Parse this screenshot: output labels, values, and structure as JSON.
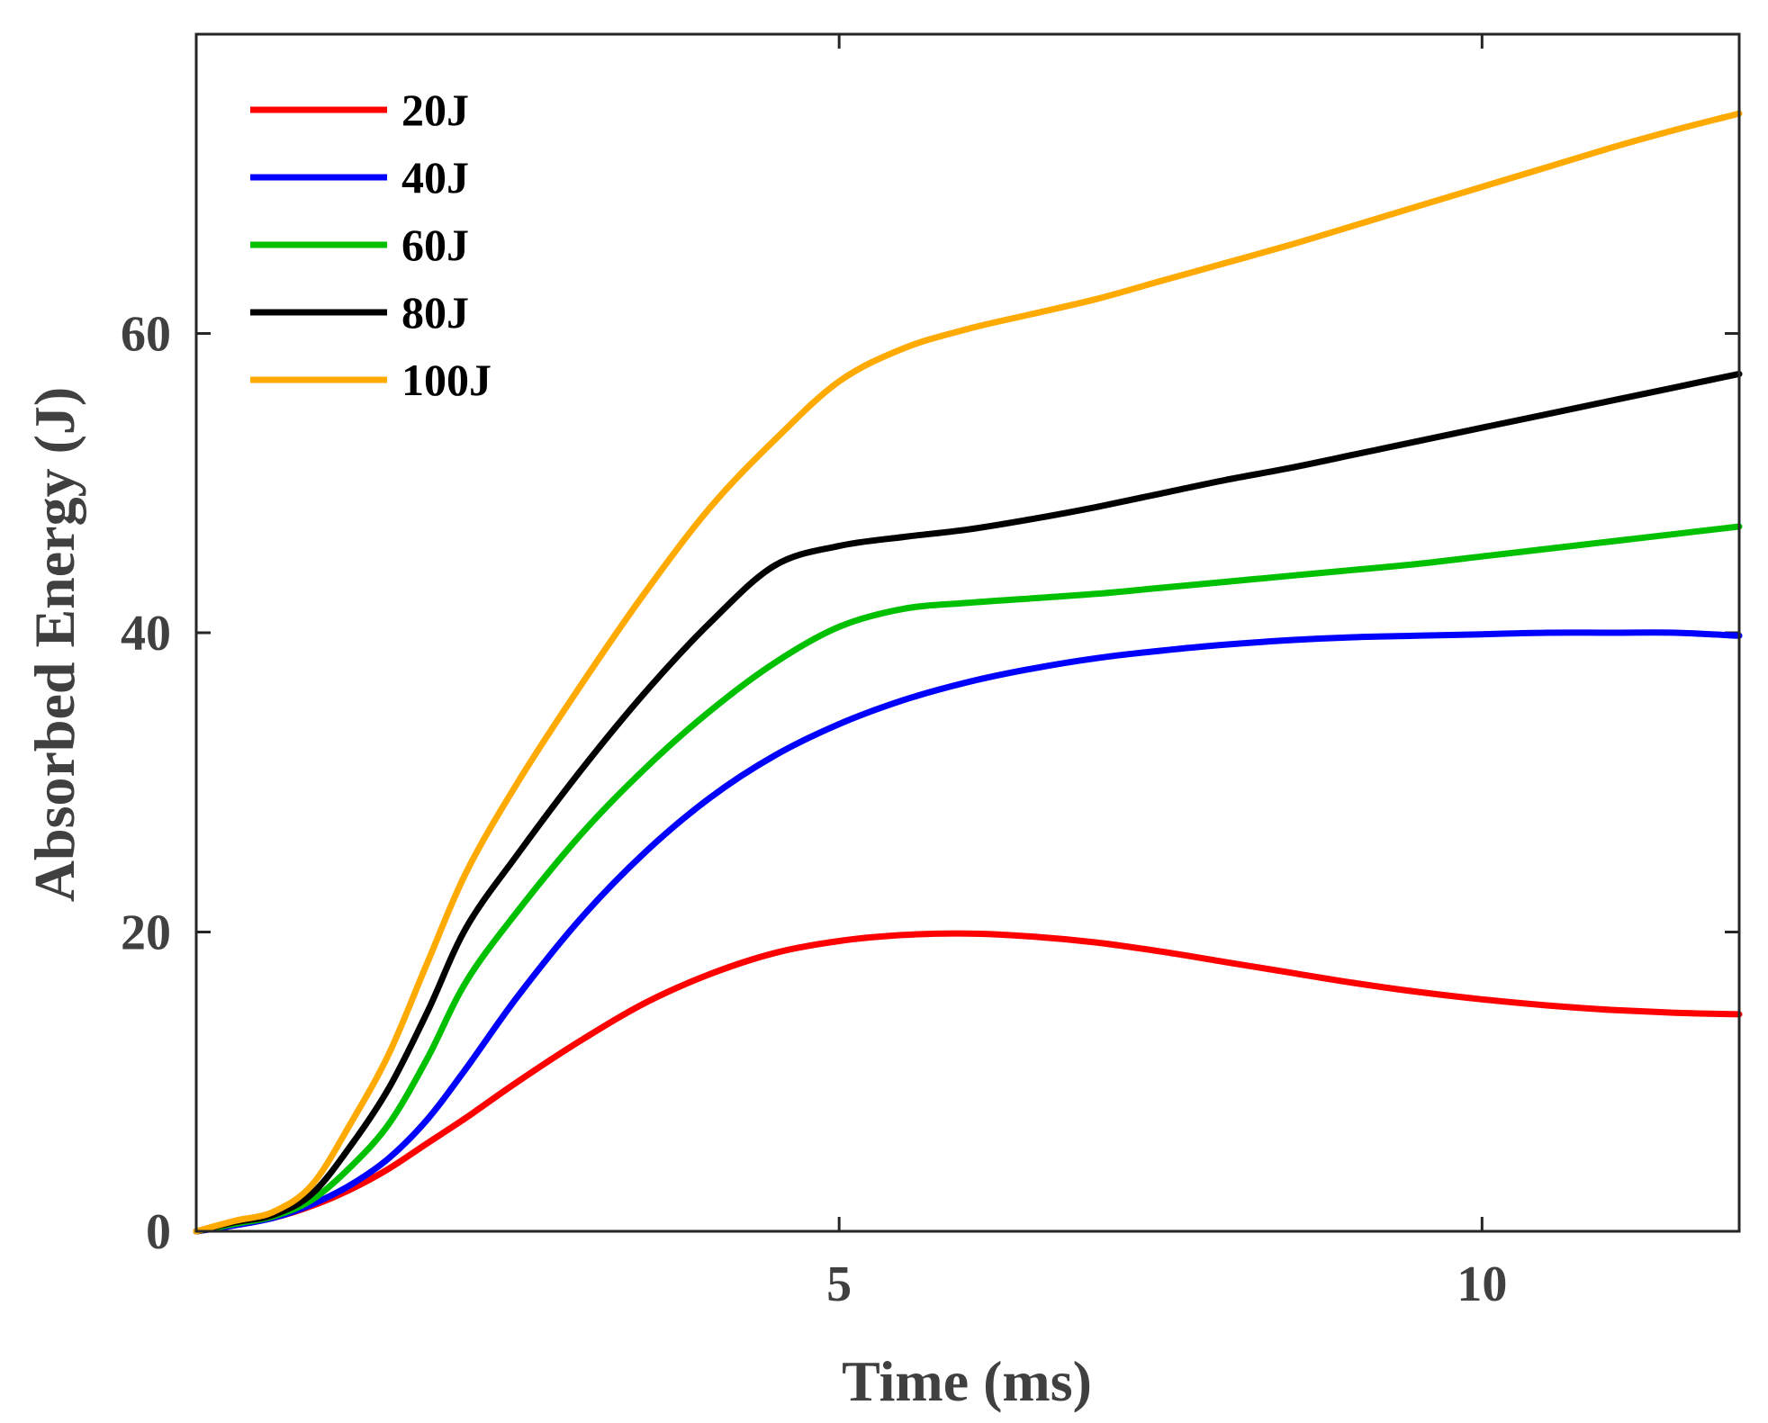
{
  "chart_data": {
    "type": "line",
    "title": "",
    "xlabel": "Time (ms)",
    "ylabel": "Absorbed Energy (J)",
    "xlim": [
      0,
      12
    ],
    "ylim": [
      0,
      80
    ],
    "xticks": [
      5,
      10
    ],
    "yticks": [
      0,
      20,
      40,
      60
    ],
    "grid": false,
    "legend_position": "top-left",
    "series": [
      {
        "name": "20J",
        "color": "#ff0000",
        "x": [
          0,
          0.3,
          0.6,
          0.9,
          1.2,
          1.5,
          1.8,
          2.1,
          2.5,
          3.0,
          3.5,
          4.0,
          4.5,
          5.0,
          5.5,
          6.0,
          6.5,
          7.0,
          7.5,
          8.0,
          8.5,
          9.0,
          9.5,
          10.0,
          10.5,
          11.0,
          11.5,
          12.0
        ],
        "y": [
          0,
          0.4,
          0.9,
          1.7,
          2.8,
          4.2,
          5.9,
          7.6,
          10.0,
          12.8,
          15.3,
          17.2,
          18.6,
          19.4,
          19.8,
          19.9,
          19.7,
          19.3,
          18.7,
          18.0,
          17.3,
          16.6,
          16.0,
          15.5,
          15.1,
          14.8,
          14.6,
          14.5
        ]
      },
      {
        "name": "40J",
        "color": "#0000ff",
        "x": [
          0,
          0.3,
          0.6,
          0.9,
          1.2,
          1.5,
          1.8,
          2.1,
          2.5,
          3.0,
          3.5,
          4.0,
          4.5,
          5.0,
          5.5,
          6.0,
          6.5,
          7.0,
          7.5,
          8.0,
          8.5,
          9.0,
          9.5,
          10.0,
          10.5,
          11.0,
          11.5,
          12.0
        ],
        "y": [
          0,
          0.4,
          0.9,
          1.8,
          3.1,
          4.9,
          7.5,
          10.9,
          15.7,
          21.0,
          25.4,
          29.0,
          31.8,
          33.9,
          35.5,
          36.7,
          37.6,
          38.3,
          38.8,
          39.2,
          39.5,
          39.7,
          39.8,
          39.9,
          40.0,
          40.0,
          40.0,
          39.8
        ]
      },
      {
        "name": "60J",
        "color": "#00c000",
        "x": [
          0,
          0.3,
          0.6,
          0.9,
          1.2,
          1.5,
          1.8,
          2.1,
          2.5,
          3.0,
          3.5,
          4.0,
          4.5,
          5.0,
          5.5,
          6.0,
          6.5,
          7.0,
          7.5,
          8.0,
          8.5,
          9.0,
          9.5,
          10.0,
          10.5,
          11.0,
          11.5,
          12.0
        ],
        "y": [
          0,
          0.5,
          1.0,
          2.1,
          4.3,
          7.2,
          11.6,
          16.7,
          21.4,
          26.6,
          31.0,
          34.8,
          38.0,
          40.4,
          41.6,
          42.0,
          42.3,
          42.6,
          43.0,
          43.4,
          43.8,
          44.2,
          44.6,
          45.1,
          45.6,
          46.1,
          46.6,
          47.1
        ]
      },
      {
        "name": "80J",
        "color": "#000000",
        "x": [
          0,
          0.3,
          0.6,
          0.9,
          1.2,
          1.5,
          1.8,
          2.1,
          2.5,
          3.0,
          3.5,
          4.0,
          4.5,
          5.0,
          5.5,
          6.0,
          6.5,
          7.0,
          7.5,
          8.0,
          8.5,
          9.0,
          9.5,
          10.0,
          10.5,
          11.0,
          11.5,
          12.0
        ],
        "y": [
          0,
          0.6,
          1.1,
          2.5,
          5.7,
          9.6,
          14.7,
          20.3,
          25.2,
          30.9,
          36.1,
          40.7,
          44.5,
          45.8,
          46.4,
          46.9,
          47.6,
          48.4,
          49.3,
          50.2,
          51.0,
          51.9,
          52.8,
          53.7,
          54.6,
          55.5,
          56.4,
          57.3
        ]
      },
      {
        "name": "100J",
        "color": "#ffaa00",
        "x": [
          0,
          0.3,
          0.6,
          0.9,
          1.2,
          1.5,
          1.8,
          2.1,
          2.5,
          3.0,
          3.5,
          4.0,
          4.5,
          5.0,
          5.5,
          6.0,
          6.5,
          7.0,
          7.5,
          8.0,
          8.5,
          9.0,
          9.5,
          10.0,
          10.5,
          11.0,
          11.5,
          12.0
        ],
        "y": [
          0,
          0.7,
          1.3,
          3.1,
          7.2,
          11.9,
          18.0,
          24.0,
          30.0,
          36.6,
          42.8,
          48.4,
          52.9,
          56.8,
          59.0,
          60.3,
          61.3,
          62.3,
          63.5,
          64.7,
          65.9,
          67.2,
          68.5,
          69.8,
          71.1,
          72.4,
          73.6,
          74.7
        ]
      }
    ]
  }
}
